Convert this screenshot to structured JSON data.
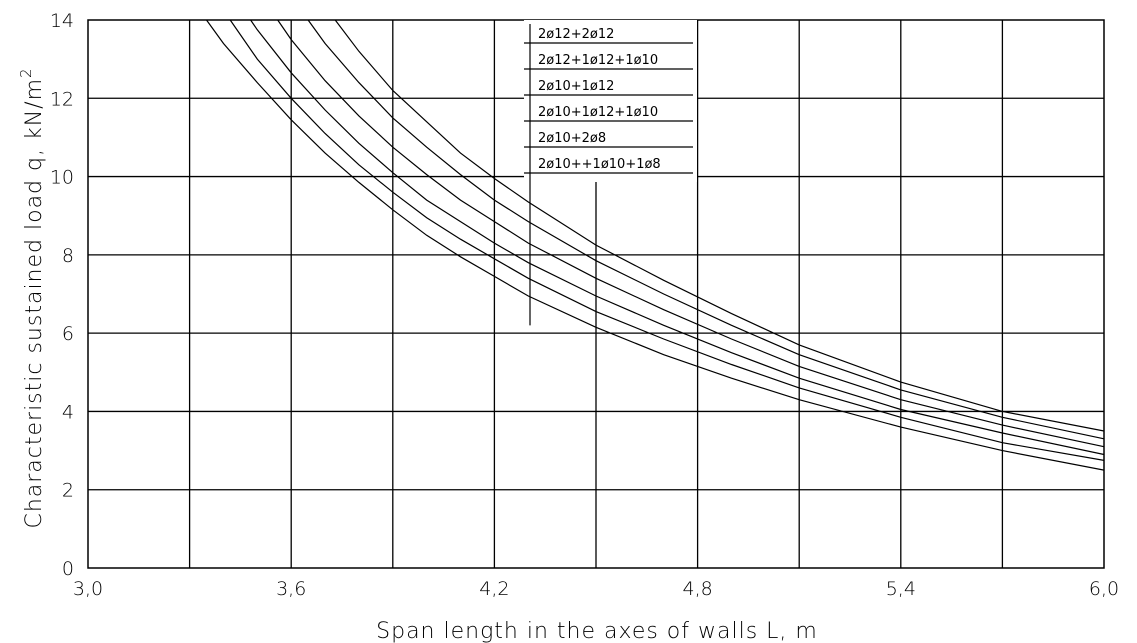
{
  "chart_data": {
    "type": "line",
    "title": "",
    "xlabel": "Span length in the axes of walls L, m",
    "ylabel": "Characteristic sustained load q, kN/m",
    "ylabel_superscript": "2",
    "xlim": [
      3.0,
      6.0
    ],
    "ylim": [
      0,
      14
    ],
    "grid": true,
    "x_tick_labels": [
      "3,0",
      "3,6",
      "4,2",
      "4,8",
      "5,4",
      "6,0"
    ],
    "y_tick_labels": [
      "0",
      "2",
      "4",
      "6",
      "8",
      "10",
      "12",
      "14"
    ],
    "legend_position": "top-center",
    "legend_entries": [
      "2ø12+2ø12",
      "2ø12+1ø12+1ø10",
      "2ø10+1ø12",
      "2ø10+1ø12+1ø10",
      "2ø10+2ø8",
      "2ø10++1ø10+1ø8"
    ],
    "series": [
      {
        "x": [
          3.73,
          3.8,
          3.9,
          4.0,
          4.1,
          4.2,
          4.3,
          4.5,
          4.7,
          4.9,
          5.1,
          5.4,
          5.7,
          6.0
        ],
        "y": [
          14.0,
          13.2,
          12.2,
          11.4,
          10.6,
          9.95,
          9.35,
          8.25,
          7.35,
          6.5,
          5.7,
          4.75,
          4.0,
          3.5
        ]
      },
      {
        "x": [
          3.65,
          3.7,
          3.8,
          3.9,
          4.0,
          4.1,
          4.2,
          4.3,
          4.5,
          4.7,
          4.9,
          5.1,
          5.4,
          5.7,
          6.0
        ],
        "y": [
          14.0,
          13.4,
          12.4,
          11.5,
          10.75,
          10.05,
          9.4,
          8.85,
          7.85,
          7.0,
          6.2,
          5.45,
          4.55,
          3.85,
          3.3
        ]
      },
      {
        "x": [
          3.56,
          3.6,
          3.7,
          3.8,
          3.9,
          4.0,
          4.1,
          4.2,
          4.3,
          4.5,
          4.7,
          4.9,
          5.1,
          5.4,
          5.7,
          6.0
        ],
        "y": [
          14.0,
          13.5,
          12.45,
          11.55,
          10.75,
          10.05,
          9.4,
          8.85,
          8.3,
          7.4,
          6.6,
          5.85,
          5.15,
          4.3,
          3.65,
          3.1
        ]
      },
      {
        "x": [
          3.48,
          3.5,
          3.6,
          3.7,
          3.8,
          3.9,
          4.0,
          4.1,
          4.2,
          4.3,
          4.5,
          4.7,
          4.9,
          5.1,
          5.4,
          5.7,
          6.0
        ],
        "y": [
          14.0,
          13.75,
          12.65,
          11.7,
          10.85,
          10.1,
          9.4,
          8.85,
          8.3,
          7.8,
          6.95,
          6.2,
          5.5,
          4.85,
          4.05,
          3.45,
          2.9
        ]
      },
      {
        "x": [
          3.42,
          3.5,
          3.6,
          3.7,
          3.8,
          3.9,
          4.0,
          4.1,
          4.2,
          4.3,
          4.5,
          4.7,
          4.9,
          5.1,
          5.4,
          5.7,
          6.0
        ],
        "y": [
          14.0,
          13.0,
          12.0,
          11.1,
          10.3,
          9.6,
          8.95,
          8.4,
          7.9,
          7.4,
          6.55,
          5.85,
          5.2,
          4.6,
          3.85,
          3.2,
          2.75
        ]
      },
      {
        "x": [
          3.35,
          3.4,
          3.5,
          3.6,
          3.7,
          3.8,
          3.9,
          4.0,
          4.1,
          4.2,
          4.3,
          4.5,
          4.7,
          4.9,
          5.1,
          5.4,
          5.7,
          6.0
        ],
        "y": [
          14.0,
          13.4,
          12.4,
          11.45,
          10.6,
          9.85,
          9.15,
          8.5,
          7.95,
          7.45,
          6.95,
          6.15,
          5.45,
          4.85,
          4.3,
          3.6,
          3.0,
          2.5
        ]
      }
    ]
  }
}
